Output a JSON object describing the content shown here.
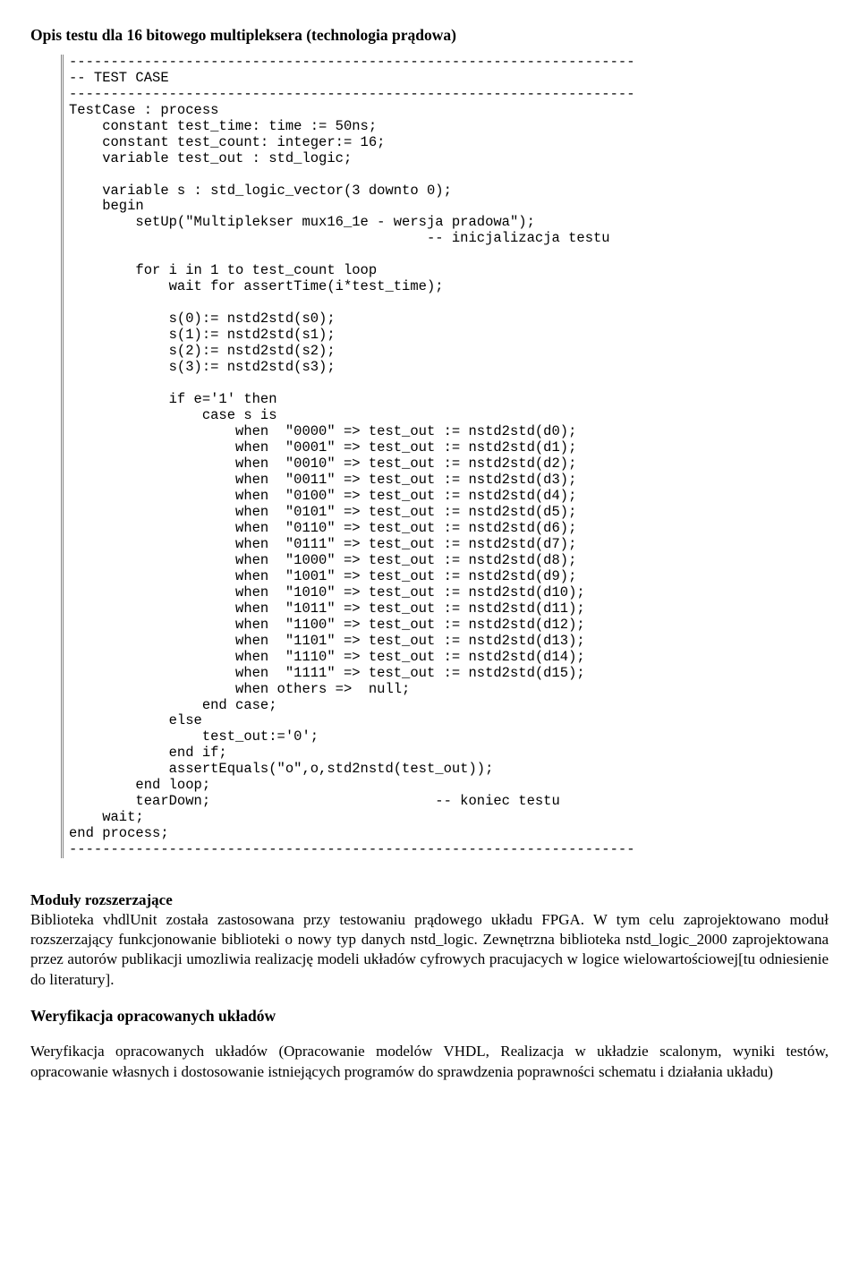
{
  "title": "Opis testu dla 16 bitowego multipleksera (technologia prądowa)",
  "code": "--------------------------------------------------------------------\n-- TEST CASE\n--------------------------------------------------------------------\nTestCase : process\n    constant test_time: time := 50ns;\n    constant test_count: integer:= 16;\n    variable test_out : std_logic;\n\n    variable s : std_logic_vector(3 downto 0);\n    begin\n        setUp(\"Multiplekser mux16_1e - wersja pradowa\");\n                                           -- inicjalizacja testu\n\n        for i in 1 to test_count loop\n            wait for assertTime(i*test_time);\n\n            s(0):= nstd2std(s0);\n            s(1):= nstd2std(s1);\n            s(2):= nstd2std(s2);\n            s(3):= nstd2std(s3);\n\n            if e='1' then\n                case s is\n                    when  \"0000\" => test_out := nstd2std(d0);\n                    when  \"0001\" => test_out := nstd2std(d1);\n                    when  \"0010\" => test_out := nstd2std(d2);\n                    when  \"0011\" => test_out := nstd2std(d3);\n                    when  \"0100\" => test_out := nstd2std(d4);\n                    when  \"0101\" => test_out := nstd2std(d5);\n                    when  \"0110\" => test_out := nstd2std(d6);\n                    when  \"0111\" => test_out := nstd2std(d7);\n                    when  \"1000\" => test_out := nstd2std(d8);\n                    when  \"1001\" => test_out := nstd2std(d9);\n                    when  \"1010\" => test_out := nstd2std(d10);\n                    when  \"1011\" => test_out := nstd2std(d11);\n                    when  \"1100\" => test_out := nstd2std(d12);\n                    when  \"1101\" => test_out := nstd2std(d13);\n                    when  \"1110\" => test_out := nstd2std(d14);\n                    when  \"1111\" => test_out := nstd2std(d15);\n                    when others =>  null;\n                end case;\n            else\n                test_out:='0';\n            end if;\n            assertEquals(\"o\",o,std2nstd(test_out));\n        end loop;\n        tearDown;                           -- koniec testu\n    wait;\nend process;\n--------------------------------------------------------------------",
  "section2": {
    "heading": "Moduły rozszerzające",
    "body": "Biblioteka vhdlUnit została zastosowana przy testowaniu prądowego układu FPGA. W tym celu zaprojektowano moduł rozszerzający funkcjonowanie biblioteki o nowy typ danych nstd_logic. Zewnętrzna biblioteka nstd_logic_2000 zaprojektowana przez autorów publikacji umozliwia realizację modeli układów cyfrowych pracujacych w logice wielowartościowej[tu odniesienie do literatury]."
  },
  "section3": {
    "heading": "Weryfikacja opracowanych układów"
  },
  "section4": {
    "body": "Weryfikacja opracowanych układów (Opracowanie modelów VHDL, Realizacja w układzie scalonym, wyniki testów, opracowanie własnych i dostosowanie istniejących programów do sprawdzenia poprawności schematu i działania układu)"
  }
}
